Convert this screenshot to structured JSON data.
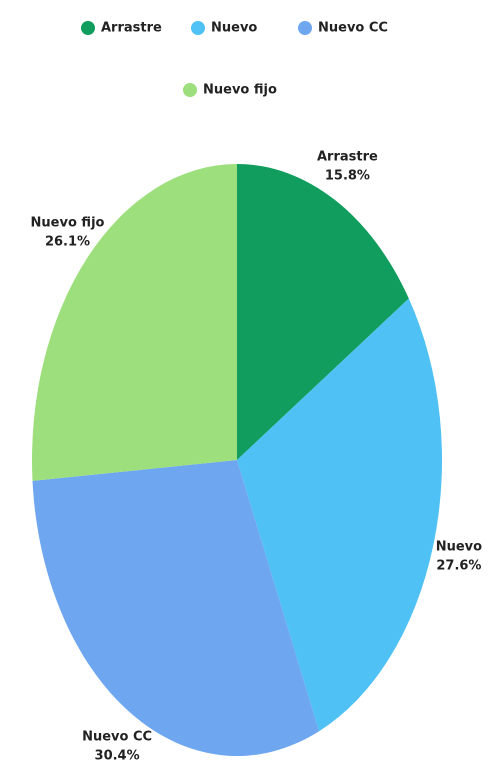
{
  "chart_data": {
    "type": "pie",
    "categories": [
      "Arrastre",
      "Nuevo",
      "Nuevo CC",
      "Nuevo fijo"
    ],
    "values": [
      15.8,
      27.6,
      30.4,
      26.1
    ],
    "value_labels": [
      "15.8%",
      "27.6%",
      "30.4%",
      "26.1%"
    ],
    "colors": [
      "#109d5e",
      "#4fc1f5",
      "#6ea6f0",
      "#9ddf7c"
    ],
    "legend": "top"
  }
}
